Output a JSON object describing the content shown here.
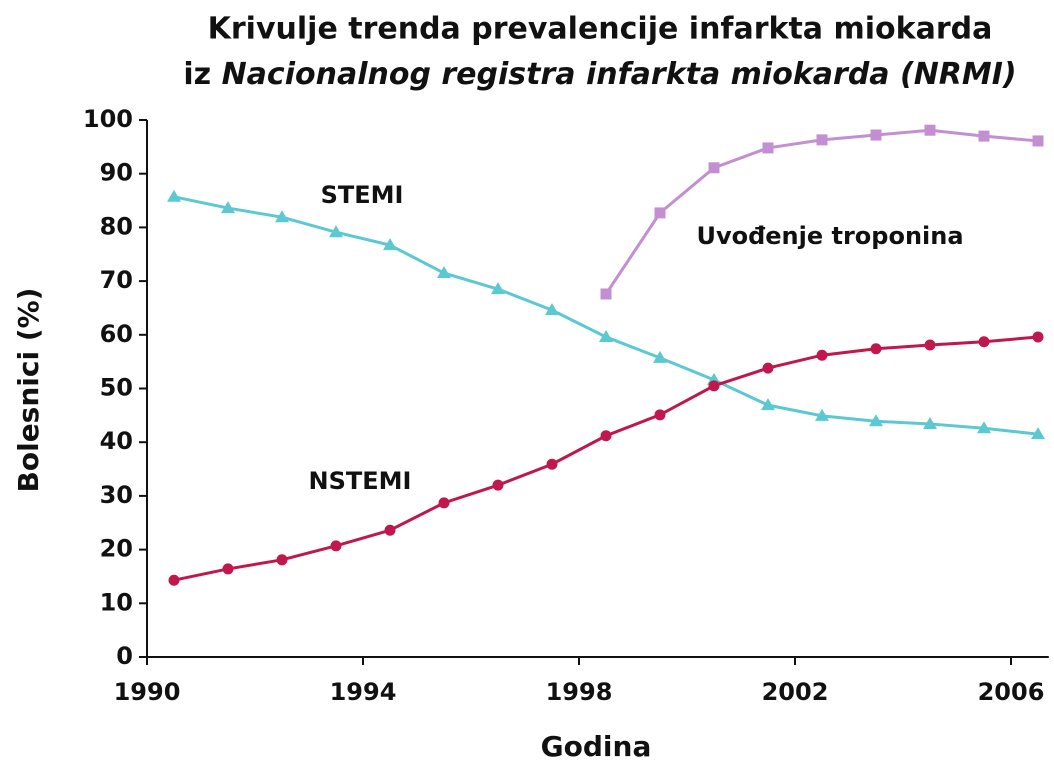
{
  "chart_data": {
    "type": "line",
    "title": [
      "Krivulje trenda prevalencije infarkta miokarda",
      "iz",
      "Nacionalnog registra infarkta miokarda (NRMI)"
    ],
    "x_label": "Godina",
    "y_label": "Bolesnici (%)",
    "x": [
      1990.5,
      1991.5,
      1992.5,
      1993.5,
      1994.5,
      1995.5,
      1996.5,
      1997.5,
      1998.5,
      1999.5,
      2000.5,
      2001.5,
      2002.5,
      2003.5,
      2004.5,
      2005.5,
      2006.5
    ],
    "series": [
      {
        "name": "STEMI",
        "color": "#5bc8d2",
        "marker": "triangle",
        "values": [
          85.7,
          83.6,
          81.9,
          79.1,
          76.7,
          71.5,
          68.5,
          64.6,
          59.6,
          55.7,
          51.6,
          46.9,
          44.9,
          43.9,
          43.4,
          42.6,
          41.5
        ]
      },
      {
        "name": "NSTEMI",
        "color": "#c0184c",
        "marker": "circle",
        "values": [
          14.3,
          16.4,
          18.1,
          20.7,
          23.6,
          28.7,
          32.0,
          35.9,
          41.2,
          45.1,
          50.5,
          53.8,
          56.2,
          57.4,
          58.1,
          58.7,
          59.6
        ]
      },
      {
        "name": "Uvođenje troponina",
        "color": "#c38fd2",
        "marker": "square",
        "values": [
          null,
          null,
          null,
          null,
          null,
          null,
          null,
          null,
          67.6,
          82.7,
          91.1,
          94.8,
          96.3,
          97.2,
          98.1,
          97.0,
          96.1
        ]
      }
    ],
    "xlim": [
      1990,
      2006.7
    ],
    "xticks": [
      1990,
      1994,
      1998,
      2002,
      2006
    ],
    "ylim": [
      0,
      100
    ],
    "yticks": [
      0,
      10,
      20,
      30,
      40,
      50,
      60,
      70,
      80,
      90,
      100
    ],
    "grid": false
  }
}
